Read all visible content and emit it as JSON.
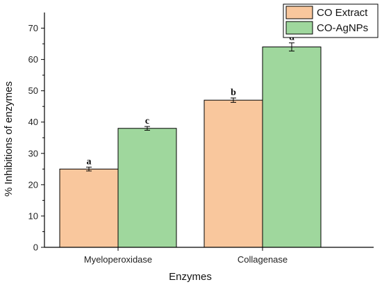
{
  "chart_data": {
    "type": "bar",
    "xlabel": "Enzymes",
    "ylabel": "% Inhibitions of enzymes",
    "ylim": [
      0,
      75
    ],
    "yticks": [
      0,
      10,
      20,
      30,
      40,
      50,
      60,
      70
    ],
    "categories": [
      "Myeloperoxidase",
      "Collagenase"
    ],
    "series": [
      {
        "name": "CO Extract",
        "color": "#f9c79d",
        "values": [
          25,
          47
        ],
        "errors": [
          0.6,
          0.7
        ],
        "labels": [
          "a",
          "b"
        ]
      },
      {
        "name": "CO-AgNPs",
        "color": "#9fd79d",
        "values": [
          38,
          64
        ],
        "errors": [
          0.6,
          1.3
        ],
        "labels": [
          "c",
          "d"
        ]
      }
    ],
    "legend_position": "top-right",
    "grid": false
  }
}
